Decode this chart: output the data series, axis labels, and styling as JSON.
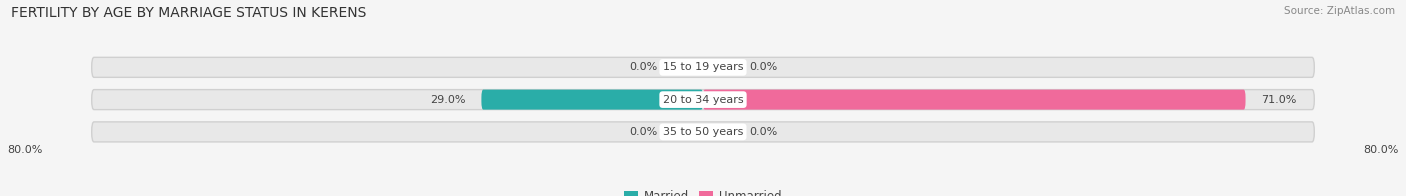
{
  "title": "FERTILITY BY AGE BY MARRIAGE STATUS IN KERENS",
  "source": "Source: ZipAtlas.com",
  "categories": [
    "15 to 19 years",
    "20 to 34 years",
    "35 to 50 years"
  ],
  "married_values": [
    0.0,
    29.0,
    0.0
  ],
  "unmarried_values": [
    0.0,
    71.0,
    0.0
  ],
  "max_value": 80.0,
  "married_color_strong": "#2aada8",
  "married_color_light": "#b8dfe0",
  "unmarried_color_strong": "#f06a9b",
  "unmarried_color_light": "#f5b8cf",
  "bar_bg_color": "#e8e8e8",
  "bar_border_color": "#d0d0d0",
  "background_color": "#f5f5f5",
  "title_fontsize": 10,
  "source_fontsize": 7.5,
  "label_fontsize": 8,
  "value_fontsize": 8,
  "axis_label_fontsize": 8,
  "legend_fontsize": 8.5
}
